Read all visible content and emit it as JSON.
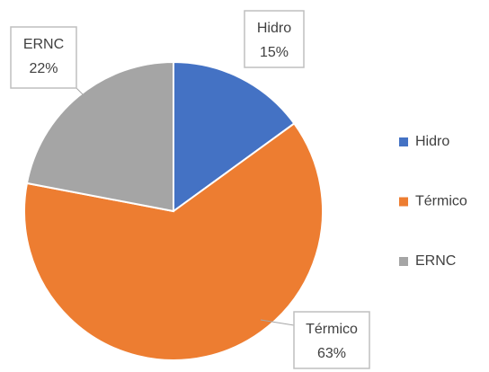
{
  "chart_data": {
    "type": "pie",
    "categories": [
      "Hidro",
      "Térmico",
      "ERNC"
    ],
    "values": [
      15,
      63,
      22
    ],
    "value_labels": [
      "15%",
      "63%",
      "22%"
    ],
    "colors": [
      "#4472c4",
      "#ed7d31",
      "#a5a5a5"
    ],
    "legend": "right"
  }
}
